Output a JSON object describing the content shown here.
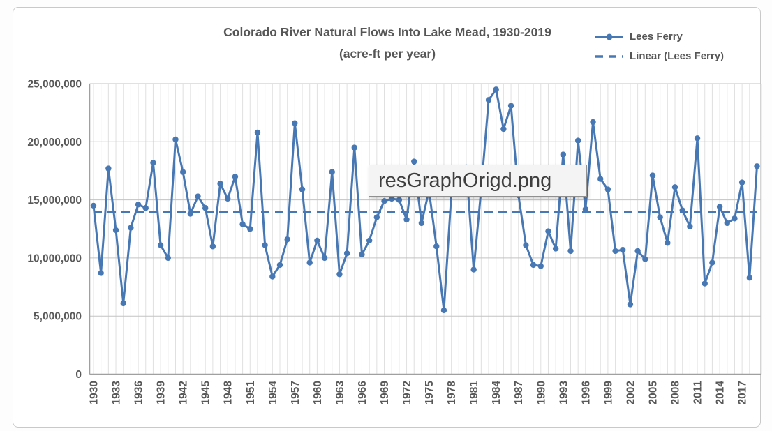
{
  "chart": {
    "title": "Colorado River Natural Flows Into Lake Mead, 1930-2019",
    "subtitle": "(acre-ft per year)",
    "legend": [
      {
        "label": "Lees Ferry",
        "style": "solid-with-marker"
      },
      {
        "label": "Linear (Lees Ferry)",
        "style": "dashed"
      }
    ],
    "overlay_label": "resGraphOrigd.png",
    "colors": {
      "series": "#4878b4",
      "title_text": "#565656",
      "axis_text": "#595959",
      "gridline_major": "#c3c3c3",
      "gridline_minor": "#e0e0e0",
      "axis_line": "#a0a0a0",
      "overlay_bg": "#f4f4f4",
      "overlay_border": "#909090"
    }
  },
  "chart_data": {
    "type": "line",
    "title": "Colorado River Natural Flows Into Lake Mead, 1930-2019 (acre-ft per year)",
    "xlabel": "",
    "ylabel": "",
    "ylim": [
      0,
      25000000
    ],
    "grid": true,
    "legend_position": "top-right",
    "x": [
      1930,
      1931,
      1932,
      1933,
      1934,
      1935,
      1936,
      1937,
      1938,
      1939,
      1940,
      1941,
      1942,
      1943,
      1944,
      1945,
      1946,
      1947,
      1948,
      1949,
      1950,
      1951,
      1952,
      1953,
      1954,
      1955,
      1956,
      1957,
      1958,
      1959,
      1960,
      1961,
      1962,
      1963,
      1964,
      1965,
      1966,
      1967,
      1968,
      1969,
      1970,
      1971,
      1972,
      1973,
      1974,
      1975,
      1976,
      1977,
      1978,
      1979,
      1980,
      1981,
      1982,
      1983,
      1984,
      1985,
      1986,
      1987,
      1988,
      1989,
      1990,
      1991,
      1992,
      1993,
      1994,
      1995,
      1996,
      1997,
      1998,
      1999,
      2000,
      2001,
      2002,
      2003,
      2004,
      2005,
      2006,
      2007,
      2008,
      2009,
      2010,
      2011,
      2012,
      2013,
      2014,
      2015,
      2016,
      2017,
      2018,
      2019
    ],
    "series": [
      {
        "name": "Lees Ferry",
        "values": [
          14500000,
          8700000,
          17700000,
          12400000,
          6100000,
          12600000,
          14600000,
          14300000,
          18200000,
          11100000,
          10000000,
          20200000,
          17400000,
          13800000,
          15300000,
          14300000,
          11000000,
          16400000,
          15100000,
          17000000,
          12900000,
          12500000,
          20800000,
          11100000,
          8400000,
          9400000,
          11600000,
          21600000,
          15900000,
          9600000,
          11500000,
          10000000,
          17400000,
          8600000,
          10400000,
          19500000,
          10300000,
          11500000,
          13500000,
          14900000,
          15100000,
          15000000,
          13300000,
          18300000,
          13000000,
          15800000,
          11000000,
          5500000,
          15500000,
          16500000,
          17800000,
          9000000,
          15900000,
          23600000,
          24500000,
          21100000,
          23100000,
          15400000,
          11100000,
          9400000,
          9300000,
          12300000,
          10800000,
          18900000,
          10600000,
          20100000,
          14200000,
          21700000,
          16800000,
          15900000,
          10600000,
          10700000,
          6000000,
          10600000,
          9900000,
          17100000,
          13500000,
          11300000,
          16100000,
          14100000,
          12700000,
          20300000,
          7800000,
          9600000,
          14400000,
          13000000,
          13400000,
          16500000,
          8300000,
          17900000
        ]
      }
    ],
    "trendline": {
      "name": "Linear (Lees Ferry)",
      "style": "dashed",
      "start": 13950000,
      "end": 13950000
    },
    "y_ticks": [
      0,
      5000000,
      10000000,
      15000000,
      20000000,
      25000000
    ],
    "y_tick_labels": [
      "0",
      "5,000,000",
      "10,000,000",
      "15,000,000",
      "20,000,000",
      "25,000,000"
    ],
    "x_tick_interval": 3,
    "x_tick_labels": [
      "1930",
      "1933",
      "1936",
      "1939",
      "1942",
      "1945",
      "1948",
      "1951",
      "1954",
      "1957",
      "1960",
      "1963",
      "1966",
      "1969",
      "1972",
      "1975",
      "1978",
      "1981",
      "1984",
      "1987",
      "1990",
      "1993",
      "1996",
      "1999",
      "2002",
      "2005",
      "2008",
      "2011",
      "2014",
      "2017"
    ]
  }
}
